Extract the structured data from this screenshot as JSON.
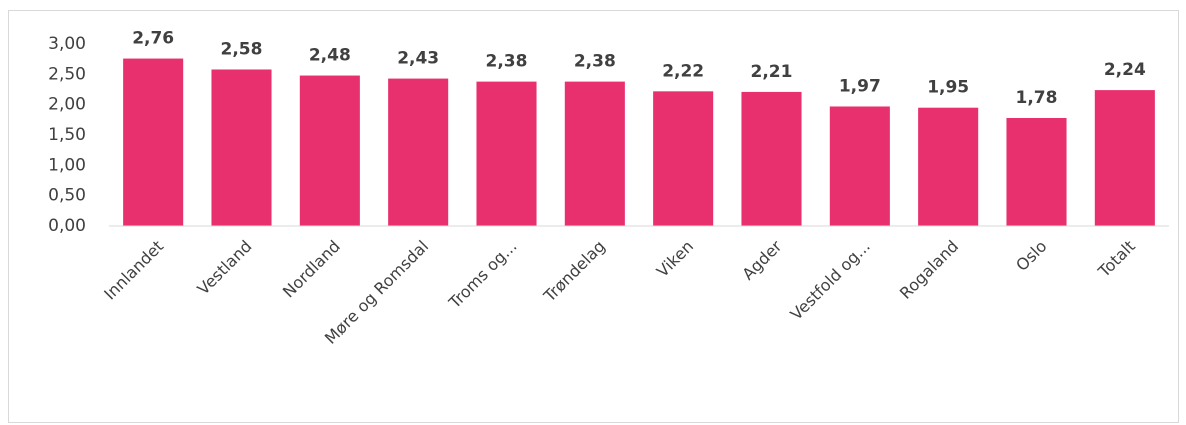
{
  "chart_data": {
    "type": "bar",
    "categories": [
      "Innlandet",
      "Vestland",
      "Nordland",
      "Møre og Romsdal",
      "Troms og...",
      "Trøndelag",
      "Viken",
      "Agder",
      "Vestfold og...",
      "Rogaland",
      "Oslo",
      "Totalt"
    ],
    "values": [
      2.76,
      2.58,
      2.48,
      2.43,
      2.38,
      2.38,
      2.22,
      2.21,
      1.97,
      1.95,
      1.78,
      2.24
    ],
    "value_labels": [
      "2,76",
      "2,58",
      "2,48",
      "2,43",
      "2,38",
      "2,38",
      "2,22",
      "2,21",
      "1,97",
      "1,95",
      "1,78",
      "2,24"
    ],
    "color": "#e8306f",
    "ylim": [
      0,
      3
    ],
    "yticks": [
      {
        "value": 0,
        "label": "0,00"
      },
      {
        "value": 0.5,
        "label": "0,50"
      },
      {
        "value": 1,
        "label": "1,00"
      },
      {
        "value": 1.5,
        "label": "1,50"
      },
      {
        "value": 2,
        "label": "2,00"
      },
      {
        "value": 2.5,
        "label": "2,50"
      },
      {
        "value": 3,
        "label": "3,00"
      }
    ],
    "grid": false
  }
}
